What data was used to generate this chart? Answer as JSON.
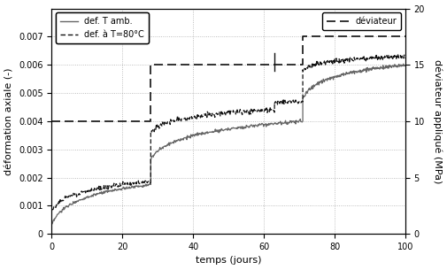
{
  "xlabel": "temps (jours)",
  "ylabel_left": "déformation axiale (-)",
  "ylabel_right": "déviateur appliqué (MPa)",
  "xlim": [
    0,
    100
  ],
  "ylim_left": [
    0,
    0.008
  ],
  "ylim_right": [
    0,
    20
  ],
  "yticks_left": [
    0,
    0.001,
    0.002,
    0.003,
    0.004,
    0.005,
    0.006,
    0.007
  ],
  "yticks_right": [
    0,
    5,
    10,
    15,
    20
  ],
  "xticks": [
    0,
    20,
    40,
    60,
    80,
    100
  ],
  "grid_color": "#999999",
  "line_color_solid": "#666666",
  "line_color_dashed": "#111111",
  "deviateur_color": "#111111",
  "legend1_labels": [
    "def. T amb.",
    "def. à T=80°C"
  ],
  "legend2_label": "déviateur",
  "step1_x": 28,
  "step2_x": 63,
  "step3_x": 71,
  "figsize": [
    5.05,
    3.05
  ],
  "dpi": 100
}
